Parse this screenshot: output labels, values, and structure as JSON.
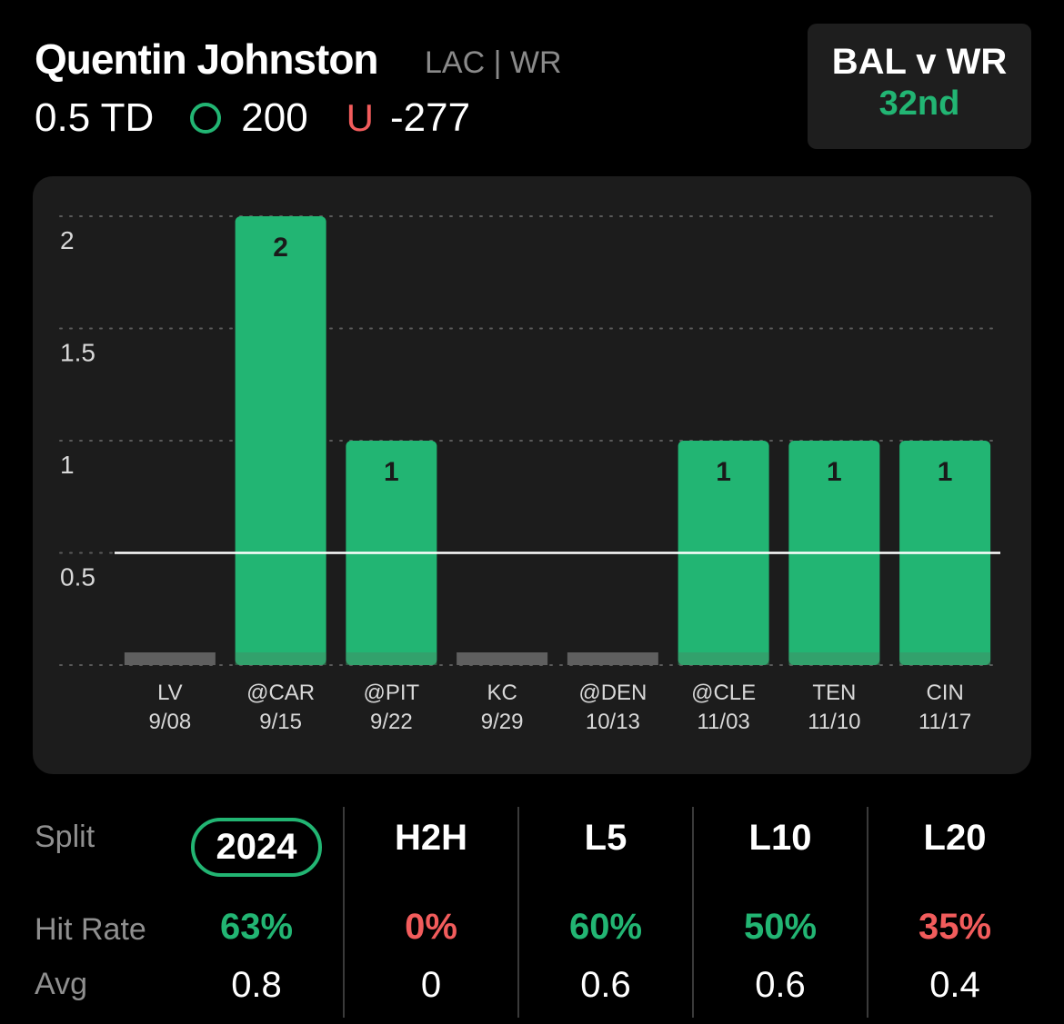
{
  "player": {
    "name": "Quentin Johnston",
    "team_pos": "LAC | WR"
  },
  "line": {
    "prop": "0.5 TD",
    "over_label": "O",
    "over_odds": "200",
    "under_label": "U",
    "under_odds": "-277"
  },
  "matchup": {
    "label": "BAL v WR",
    "rank": "32nd"
  },
  "colors": {
    "green": "#22b573",
    "red": "#f25c5c",
    "empty_bar": "#5f5f5f"
  },
  "chart_data": {
    "type": "bar",
    "categories": [
      "LV 9/08",
      "@CAR 9/15",
      "@PIT 9/22",
      "KC 9/29",
      "@DEN 10/13",
      "@CLE 11/03",
      "TEN 11/10",
      "CIN 11/17"
    ],
    "opponents": [
      "LV",
      "@CAR",
      "@PIT",
      "KC",
      "@DEN",
      "@CLE",
      "TEN",
      "CIN"
    ],
    "dates": [
      "9/08",
      "9/15",
      "9/22",
      "9/29",
      "10/13",
      "11/03",
      "11/10",
      "11/17"
    ],
    "values": [
      0,
      2,
      1,
      0,
      0,
      1,
      1,
      1
    ],
    "line": 0.5,
    "yticks": [
      "0.5",
      "1",
      "1.5",
      "2"
    ],
    "ylim": [
      0,
      2
    ],
    "grid": true
  },
  "splits": {
    "labels": {
      "split": "Split",
      "hit_rate": "Hit Rate",
      "avg": "Avg"
    },
    "columns": [
      {
        "name": "2024",
        "hit_rate": "63%",
        "avg": "0.8",
        "hit_status": "green",
        "active": true
      },
      {
        "name": "H2H",
        "hit_rate": "0%",
        "avg": "0",
        "hit_status": "red",
        "active": false
      },
      {
        "name": "L5",
        "hit_rate": "60%",
        "avg": "0.6",
        "hit_status": "green",
        "active": false
      },
      {
        "name": "L10",
        "hit_rate": "50%",
        "avg": "0.6",
        "hit_status": "green",
        "active": false
      },
      {
        "name": "L20",
        "hit_rate": "35%",
        "avg": "0.4",
        "hit_status": "red",
        "active": false
      }
    ]
  }
}
